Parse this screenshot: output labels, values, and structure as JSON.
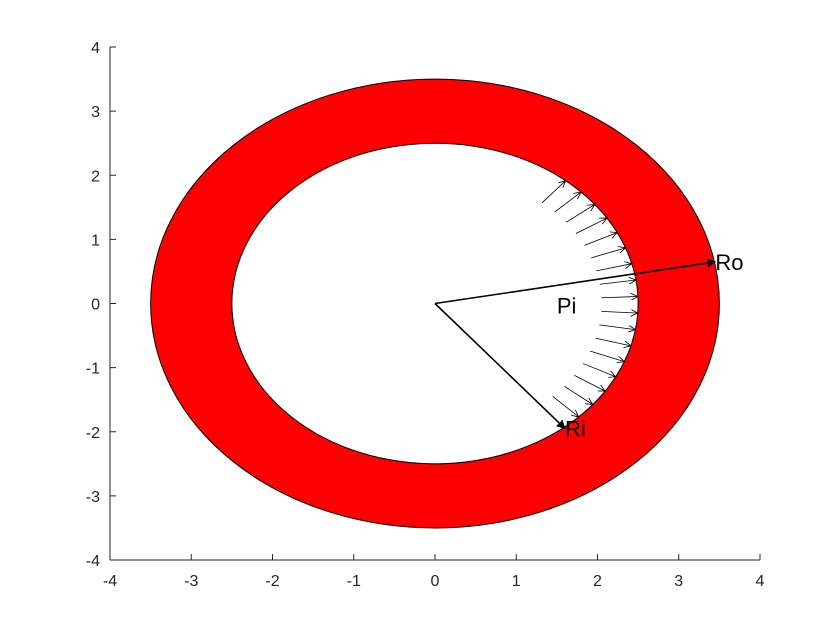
{
  "chart_data": {
    "type": "diagram",
    "xlim": [
      -4,
      4
    ],
    "ylim": [
      -4,
      4
    ],
    "x_ticks": [
      -4,
      -3,
      -2,
      -1,
      0,
      1,
      2,
      3,
      4
    ],
    "y_ticks": [
      -4,
      -3,
      -2,
      -1,
      0,
      1,
      2,
      3,
      4
    ],
    "x_tick_labels": [
      "-4",
      "-3",
      "-2",
      "-1",
      "0",
      "1",
      "2",
      "3",
      "4"
    ],
    "y_tick_labels": [
      "-4",
      "-3",
      "-2",
      "-1",
      "0",
      "1",
      "2",
      "3",
      "4"
    ],
    "ring": {
      "center": [
        0,
        0
      ],
      "inner_radius": 2.5,
      "outer_radius": 3.5,
      "fill_color": "#ff0000",
      "edge_color": "#000000"
    },
    "radius_vectors": [
      {
        "label": "Ro",
        "from": [
          0,
          0
        ],
        "to": [
          3.45,
          0.65
        ]
      },
      {
        "label": "Ri",
        "from": [
          0,
          0
        ],
        "to": [
          1.6,
          -1.95
        ]
      }
    ],
    "pressure": {
      "label": "Pi",
      "label_pos": [
        1.5,
        0.0
      ],
      "angle_start_deg": -45,
      "angle_end_deg": 50,
      "count": 17,
      "arrow_length": 0.45,
      "arrow_color": "#000000"
    },
    "grid": false,
    "legend": "none",
    "box": "off"
  }
}
